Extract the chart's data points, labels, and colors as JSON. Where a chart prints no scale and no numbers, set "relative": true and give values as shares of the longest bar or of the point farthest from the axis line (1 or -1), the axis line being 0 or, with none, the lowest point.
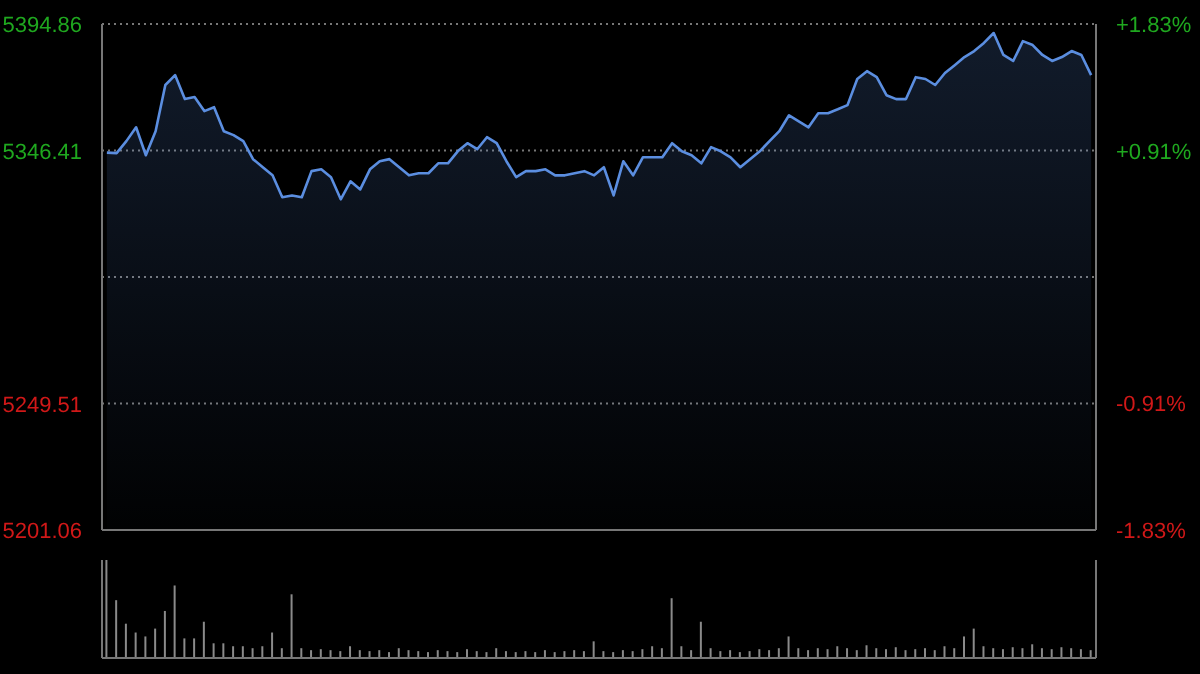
{
  "chart_data": [
    {
      "type": "area",
      "categories": [
        null,
        null,
        null,
        null,
        null,
        null,
        null,
        null,
        null,
        null,
        null,
        null,
        null,
        null,
        null,
        null,
        null,
        null,
        null,
        null,
        null,
        null,
        null,
        null,
        null,
        null,
        null,
        null,
        null,
        null,
        null,
        null,
        null,
        null,
        null,
        null,
        null,
        null,
        null,
        null,
        null,
        null,
        null,
        null,
        null,
        null,
        null,
        null,
        null,
        null,
        null,
        null,
        null,
        null,
        null,
        null,
        null,
        null,
        null,
        null,
        null,
        null,
        null,
        null,
        null,
        null,
        null,
        null,
        null,
        null,
        null,
        null,
        null,
        null,
        null,
        null,
        null,
        null,
        null,
        null,
        null,
        null,
        null,
        null,
        null,
        null,
        null,
        null,
        null,
        null,
        null,
        null,
        null,
        null,
        null,
        null,
        null,
        null,
        null,
        null,
        null,
        null
      ],
      "series": [
        {
          "color": "#5b8ee0",
          "values": [
            5345.6,
            5345.4,
            5350.0,
            5355.3,
            5344.6,
            5353.8,
            5371.5,
            5375.3,
            5366.1,
            5366.9,
            5361.5,
            5363.0,
            5353.8,
            5352.3,
            5350.0,
            5343.1,
            5340.0,
            5336.9,
            5328.5,
            5329.2,
            5328.5,
            5338.5,
            5339.2,
            5336.2,
            5327.7,
            5334.6,
            5331.5,
            5339.2,
            5342.3,
            5343.1,
            5340.0,
            5336.9,
            5337.7,
            5337.7,
            5341.5,
            5341.5,
            5346.1,
            5349.2,
            5346.9,
            5351.5,
            5349.2,
            5342.3,
            5336.2,
            5338.5,
            5338.5,
            5339.2,
            5336.9,
            5336.9,
            5337.7,
            5338.5,
            5336.9,
            5340.0,
            5329.2,
            5342.3,
            5336.9,
            5343.8,
            5343.8,
            5343.8,
            5349.2,
            5346.1,
            5344.6,
            5341.5,
            5347.7,
            5346.1,
            5343.8,
            5340.0,
            5343.1,
            5346.1,
            5350.0,
            5353.8,
            5359.9,
            5357.6,
            5355.3,
            5360.7,
            5360.7,
            5362.2,
            5363.8,
            5373.8,
            5376.8,
            5374.5,
            5367.6,
            5366.1,
            5366.1,
            5374.5,
            5373.8,
            5371.5,
            5376.1,
            5379.1,
            5382.2,
            5384.5,
            5387.6,
            5391.4,
            5383.0,
            5380.7,
            5388.3,
            5386.8,
            5383.0,
            5380.7,
            5382.2,
            5384.5,
            5383.0,
            5375.3
          ]
        }
      ],
      "ylim": [
        5201.06,
        5394.86
      ],
      "yticks": [
        5201.06,
        5249.51,
        {
          "value": 5297.96,
          "label": null
        },
        5346.41,
        5394.86
      ],
      "y2lim": [
        -1.83,
        1.83
      ],
      "y2ticks": [
        {
          "value": -1.83,
          "label": "-1.83%"
        },
        {
          "value": -0.91,
          "label": "-0.91%"
        },
        {
          "value": 0.91,
          "label": "+0.91%"
        },
        {
          "value": 1.83,
          "label": "+1.83%"
        }
      ],
      "grid": true
    },
    {
      "type": "bar",
      "relative": true,
      "categories": [
        null,
        null,
        null,
        null,
        null,
        null,
        null,
        null,
        null,
        null,
        null,
        null,
        null,
        null,
        null,
        null,
        null,
        null,
        null,
        null,
        null,
        null,
        null,
        null,
        null,
        null,
        null,
        null,
        null,
        null,
        null,
        null,
        null,
        null,
        null,
        null,
        null,
        null,
        null,
        null,
        null,
        null,
        null,
        null,
        null,
        null,
        null,
        null,
        null,
        null,
        null,
        null,
        null,
        null,
        null,
        null,
        null,
        null,
        null,
        null,
        null,
        null,
        null,
        null,
        null,
        null,
        null,
        null,
        null,
        null,
        null,
        null,
        null,
        null,
        null,
        null,
        null,
        null,
        null,
        null,
        null,
        null,
        null,
        null,
        null,
        null,
        null,
        null,
        null,
        null,
        null,
        null,
        null,
        null,
        null,
        null,
        null,
        null,
        null,
        null,
        null,
        null
      ],
      "series": [
        {
          "color": "#8a8a8a",
          "values": [
            1.0,
            0.59,
            0.35,
            0.26,
            0.22,
            0.3,
            0.48,
            0.74,
            0.2,
            0.2,
            0.37,
            0.15,
            0.15,
            0.12,
            0.12,
            0.1,
            0.12,
            0.26,
            0.1,
            0.65,
            0.1,
            0.08,
            0.09,
            0.08,
            0.07,
            0.12,
            0.08,
            0.07,
            0.08,
            0.06,
            0.1,
            0.08,
            0.07,
            0.06,
            0.08,
            0.07,
            0.06,
            0.09,
            0.07,
            0.06,
            0.1,
            0.07,
            0.06,
            0.07,
            0.06,
            0.08,
            0.06,
            0.07,
            0.08,
            0.07,
            0.17,
            0.07,
            0.06,
            0.08,
            0.07,
            0.09,
            0.12,
            0.1,
            0.61,
            0.12,
            0.08,
            0.37,
            0.1,
            0.07,
            0.08,
            0.06,
            0.07,
            0.09,
            0.08,
            0.1,
            0.22,
            0.1,
            0.08,
            0.1,
            0.09,
            0.12,
            0.1,
            0.08,
            0.13,
            0.1,
            0.09,
            0.11,
            0.08,
            0.09,
            0.1,
            0.08,
            0.12,
            0.1,
            0.22,
            0.3,
            0.12,
            0.1,
            0.09,
            0.11,
            0.1,
            0.14,
            0.1,
            0.09,
            0.11,
            0.1,
            0.09,
            0.08
          ]
        }
      ]
    }
  ]
}
